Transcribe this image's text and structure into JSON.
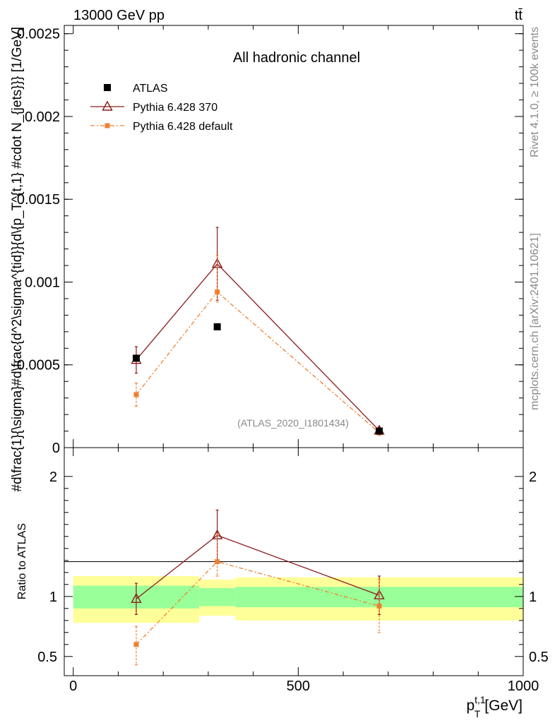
{
  "header": {
    "energy_label": "13000 GeV pp",
    "process_label": "tt̄"
  },
  "side_labels": {
    "rivet": "Rivet 4.1.0, ≥ 100k events",
    "mcplots": "mcplots.cern.ch [arXiv:2401.10621]"
  },
  "chart_data": [
    {
      "type": "line",
      "title": "All hadronic channel",
      "analysis_label": "(ATLAS_2020_I1801434)",
      "xlabel": "p_T^{t,1} [GeV]",
      "ylabel": "#d\\frac{1}{\\sigma}#d\\frac{d^2\\sigma^{tid}}{d\\{p_T^{t,1} #cdot N_{jets}}} [1/GeV]",
      "xlim": [
        -20,
        1000
      ],
      "ylim": [
        0,
        0.00255
      ],
      "yticks": [
        0,
        0.0005,
        0.001,
        0.0015,
        0.002,
        0.0025
      ],
      "ytick_labels": [
        "0",
        "0.0005",
        "0.001",
        "0.0015",
        "0.002",
        "0.0025"
      ],
      "series": [
        {
          "name": "ATLAS",
          "color": "#000000",
          "marker": "square",
          "x": [
            140,
            320,
            680
          ],
          "y": [
            0.00054,
            0.00073,
            0.0001
          ]
        },
        {
          "name": "Pythia 6.428 370",
          "color": "#8b1a1a",
          "marker": "triangle-open",
          "x": [
            140,
            320,
            680
          ],
          "y": [
            0.00053,
            0.00111,
            0.000103
          ],
          "err_low": [
            8e-05,
            0.00022,
            2e-05
          ],
          "err_high": [
            8e-05,
            0.00022,
            2e-05
          ]
        },
        {
          "name": "Pythia 6.428 default",
          "color": "#f08030",
          "marker": "square-small",
          "x": [
            140,
            320,
            680
          ],
          "y": [
            0.00032,
            0.00094,
            9e-05
          ],
          "err_low": [
            7e-05,
            6e-05,
            1.5e-05
          ],
          "err_high": [
            7e-05,
            0.00022,
            1.5e-05
          ]
        }
      ]
    },
    {
      "type": "line",
      "title": "",
      "xlabel": "p_T^{t,1} [GeV]",
      "ylabel": "Ratio to ATLAS",
      "xlim": [
        -20,
        1000
      ],
      "ylim": [
        0.34,
        2.24
      ],
      "yticks": [
        0.5,
        1,
        2
      ],
      "ytick_labels": [
        "0.5",
        "1",
        "2"
      ],
      "xticks": [
        0,
        500,
        1000
      ],
      "xtick_labels": [
        "0",
        "500",
        "1000"
      ],
      "bands": {
        "edges": [
          0,
          280,
          360,
          1000
        ],
        "outer_low": [
          0.78,
          0.84,
          0.8
        ],
        "outer_high": [
          1.17,
          1.14,
          1.16
        ],
        "inner_low": [
          0.9,
          0.92,
          0.91
        ],
        "inner_high": [
          1.09,
          1.07,
          1.08
        ]
      },
      "series": [
        {
          "name": "Pythia 6.428 370",
          "color": "#8b1a1a",
          "marker": "triangle-open",
          "x": [
            140,
            320,
            680
          ],
          "y": [
            0.98,
            1.51,
            1.01
          ],
          "err_low": [
            0.13,
            0.21,
            0.16
          ],
          "err_high": [
            0.13,
            0.21,
            0.16
          ]
        },
        {
          "name": "Pythia 6.428 default",
          "color": "#f08030",
          "marker": "square-small",
          "x": [
            140,
            320,
            680
          ],
          "y": [
            0.6,
            1.29,
            0.92
          ],
          "err_low": [
            0.17,
            0.12,
            0.22
          ],
          "err_high": [
            0.15,
            0.23,
            0.22
          ]
        }
      ]
    }
  ]
}
